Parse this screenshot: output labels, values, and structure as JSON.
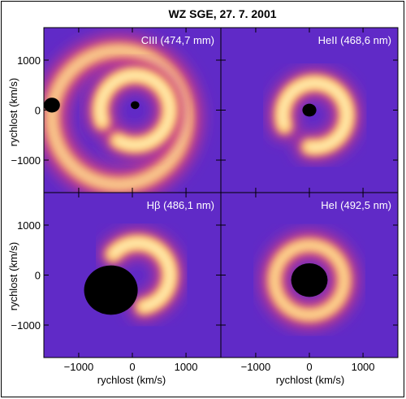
{
  "chart_data": {
    "type": "heatmap",
    "title": "WZ SGE, 27. 7. 2001",
    "xlabel": "rychlost (km/s)",
    "ylabel": "rychlost (km/s)",
    "xlim": [
      -1650,
      1650
    ],
    "ylim": [
      -1650,
      1650
    ],
    "xticks": [
      -1000,
      0,
      1000
    ],
    "yticks": [
      1000,
      0,
      -1000
    ],
    "xtick_labels": [
      "−1000",
      "0",
      "1000"
    ],
    "ytick_labels": [
      "1000",
      "0",
      "−1000"
    ],
    "colormap": [
      "#1a1ae0",
      "#4a2ad0",
      "#8a2ab8",
      "#c83a8a",
      "#f07a50",
      "#ffc060",
      "#fff4c0"
    ],
    "panels": [
      {
        "label": "CIII (474,7 mm)",
        "position": "top-left",
        "features": [
          {
            "kind": "ring",
            "center": [
              -250,
              -150
            ],
            "radius": 1250,
            "width": 380,
            "intensity": 0.78
          },
          {
            "kind": "arc",
            "center": [
              50,
              0
            ],
            "radius": 650,
            "width": 300,
            "start_deg": -120,
            "end_deg": 200,
            "intensity": 1.0
          },
          {
            "kind": "absorption",
            "center": [
              -1500,
              100
            ],
            "radius": 150
          },
          {
            "kind": "absorption",
            "center": [
              50,
              100
            ],
            "radius": 80
          }
        ]
      },
      {
        "label": "HeII (468,6 nm)",
        "position": "top-right",
        "features": [
          {
            "kind": "arc",
            "center": [
              100,
              -100
            ],
            "radius": 600,
            "width": 300,
            "start_deg": -100,
            "end_deg": 200,
            "intensity": 1.0
          },
          {
            "kind": "absorption",
            "center": [
              0,
              0
            ],
            "radius": 130
          }
        ]
      },
      {
        "label": "Hβ (486,1 nm)",
        "position": "bottom-left",
        "features": [
          {
            "kind": "arc",
            "center": [
              100,
              0
            ],
            "radius": 600,
            "width": 300,
            "start_deg": -80,
            "end_deg": 140,
            "intensity": 1.0
          },
          {
            "kind": "absorption",
            "center": [
              -400,
              -300
            ],
            "radius": 500
          }
        ]
      },
      {
        "label": "HeI (492,5 nm)",
        "position": "bottom-right",
        "features": [
          {
            "kind": "ring",
            "center": [
              0,
              -100
            ],
            "radius": 650,
            "width": 330,
            "intensity": 0.9
          },
          {
            "kind": "absorption",
            "center": [
              0,
              -100
            ],
            "radius": 340
          }
        ]
      }
    ]
  }
}
